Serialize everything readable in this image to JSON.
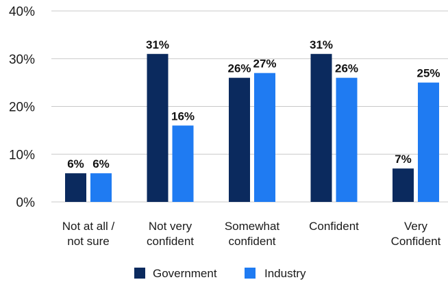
{
  "chart_data": {
    "type": "bar",
    "categories": [
      [
        "Not at all /",
        "not sure"
      ],
      [
        "Not very",
        "confident"
      ],
      [
        "Somewhat",
        "confident"
      ],
      [
        "Confident"
      ],
      [
        "Very",
        "Confident"
      ]
    ],
    "series": [
      {
        "name": "Government",
        "color": "#0b2a5e",
        "values": [
          6,
          31,
          26,
          31,
          7
        ],
        "labels": [
          "6%",
          "31%",
          "26%",
          "31%",
          "7%"
        ]
      },
      {
        "name": "Industry",
        "color": "#1f7bf2",
        "values": [
          6,
          16,
          27,
          26,
          25
        ],
        "labels": [
          "6%",
          "16%",
          "27%",
          "26%",
          "25%"
        ]
      }
    ],
    "ylim": [
      0,
      40
    ],
    "yticks": [
      0,
      10,
      20,
      30,
      40
    ],
    "ytick_labels": [
      "0%",
      "10%",
      "20%",
      "30%",
      "40%"
    ],
    "grid": true,
    "legend_position": "bottom-center"
  }
}
